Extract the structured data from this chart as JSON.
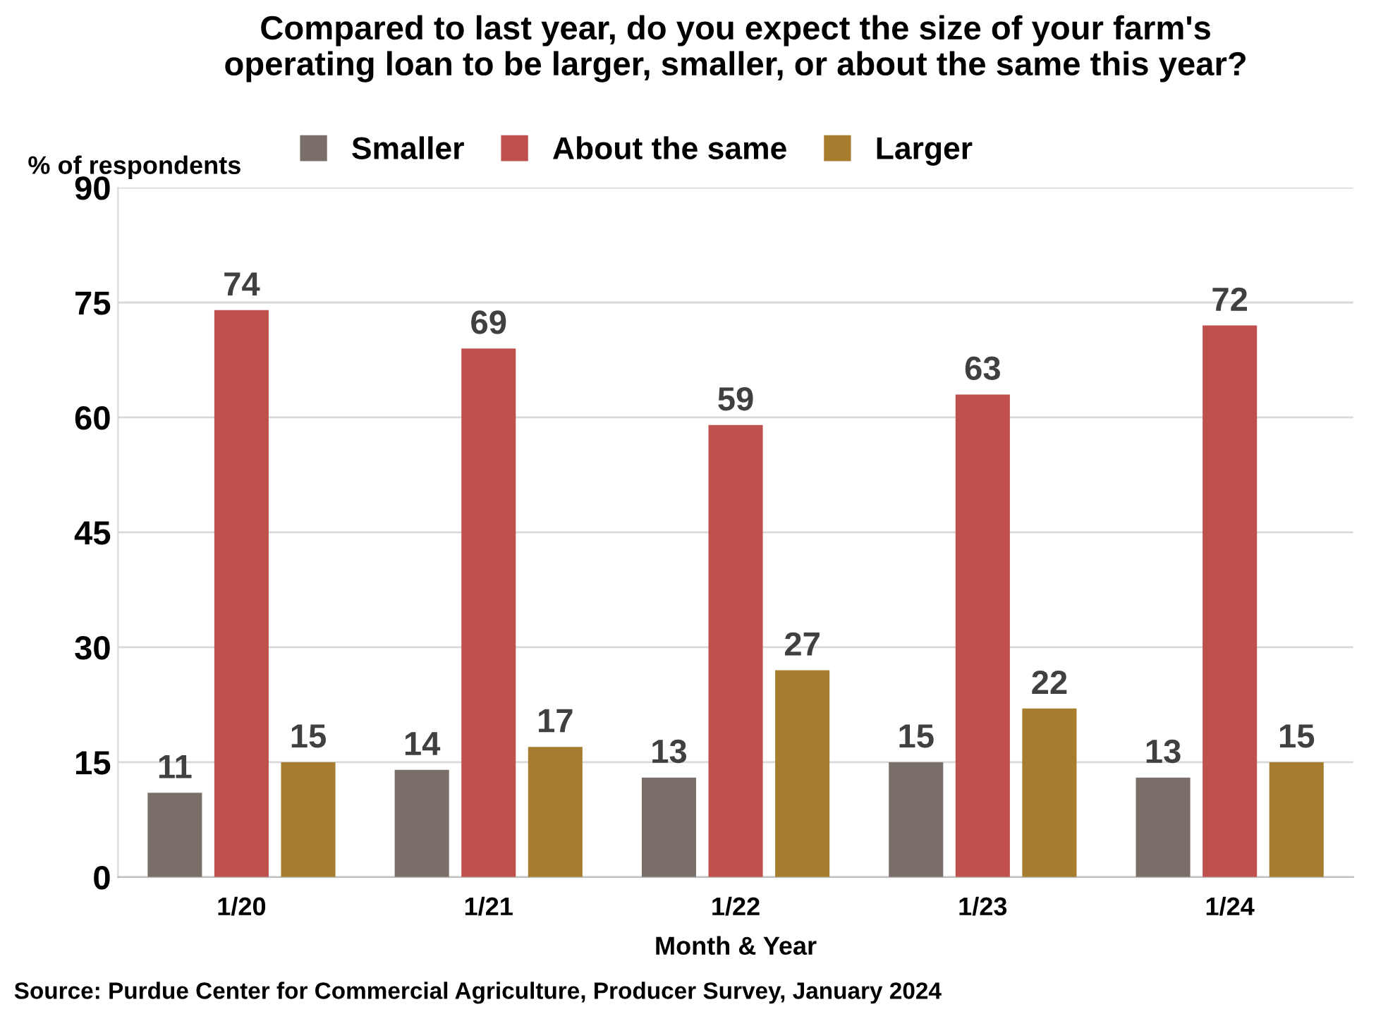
{
  "chart_data": {
    "type": "bar",
    "title": "Compared to last year, do you expect the size of your farm's\noperating loan to be larger, smaller, or about the same this year?",
    "ylabel": "% of respondents",
    "xlabel": "Month & Year",
    "categories": [
      "1/20",
      "1/21",
      "1/22",
      "1/23",
      "1/24"
    ],
    "series": [
      {
        "name": "Smaller",
        "color": "#7a6e68",
        "values": [
          11,
          14,
          13,
          15,
          13
        ]
      },
      {
        "name": "About the same",
        "color": "#c0504d",
        "values": [
          74,
          69,
          59,
          63,
          72
        ]
      },
      {
        "name": "Larger",
        "color": "#a67c2e",
        "values": [
          15,
          17,
          27,
          22,
          15
        ]
      }
    ],
    "ylim": [
      0,
      90
    ],
    "yticks": [
      0,
      15,
      30,
      45,
      60,
      75,
      90
    ],
    "grid": "y",
    "legend": "top",
    "data_labels": true,
    "annotations": [
      "Source: Purdue Center for Commercial Agriculture, Producer Survey, January 2024"
    ]
  }
}
